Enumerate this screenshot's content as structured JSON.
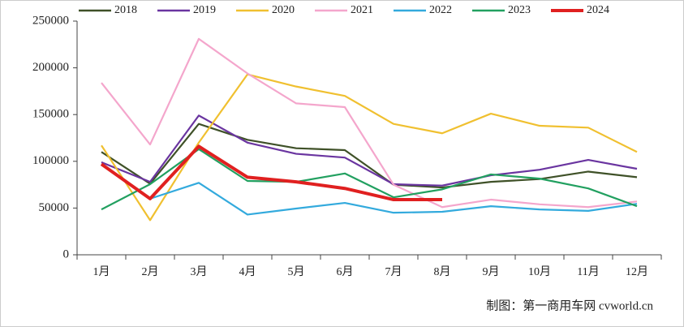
{
  "chart_data": {
    "type": "line",
    "categories": [
      "1月",
      "2月",
      "3月",
      "4月",
      "5月",
      "6月",
      "7月",
      "8月",
      "9月",
      "10月",
      "11月",
      "12月"
    ],
    "series": [
      {
        "name": "2018",
        "color": "#3f5128",
        "values": [
          110000,
          76000,
          140000,
          123000,
          114000,
          112000,
          75000,
          72000,
          78000,
          81000,
          89000,
          83000
        ]
      },
      {
        "name": "2019",
        "color": "#6a35a0",
        "values": [
          99000,
          78000,
          149000,
          120000,
          108000,
          104000,
          75500,
          74000,
          85000,
          91000,
          101500,
          92000
        ]
      },
      {
        "name": "2020",
        "color": "#f0c030",
        "values": [
          117000,
          37000,
          120000,
          193000,
          180000,
          170000,
          140000,
          130000,
          151000,
          138000,
          136000,
          110000
        ]
      },
      {
        "name": "2021",
        "color": "#f4a6cc",
        "values": [
          184000,
          118000,
          231000,
          194000,
          162000,
          158000,
          75000,
          51000,
          59000,
          54000,
          51000,
          57000
        ]
      },
      {
        "name": "2022",
        "color": "#33aadd",
        "values": [
          97000,
          60000,
          77000,
          43000,
          49500,
          55500,
          45000,
          46000,
          52000,
          48500,
          47000,
          54500
        ]
      },
      {
        "name": "2023",
        "color": "#22a060",
        "values": [
          48500,
          75500,
          113000,
          79000,
          78000,
          87000,
          61500,
          70000,
          86000,
          81500,
          71000,
          52000
        ]
      },
      {
        "name": "2024",
        "color": "#e02020",
        "values": [
          97000,
          60000,
          116000,
          83000,
          78000,
          71000,
          59000,
          59000,
          null,
          null,
          null,
          null
        ]
      }
    ],
    "ylim": [
      0,
      250000
    ],
    "yticks": [
      0,
      50000,
      100000,
      150000,
      200000,
      250000
    ],
    "source": "制图：第一商用车网 cvworld.cn"
  }
}
